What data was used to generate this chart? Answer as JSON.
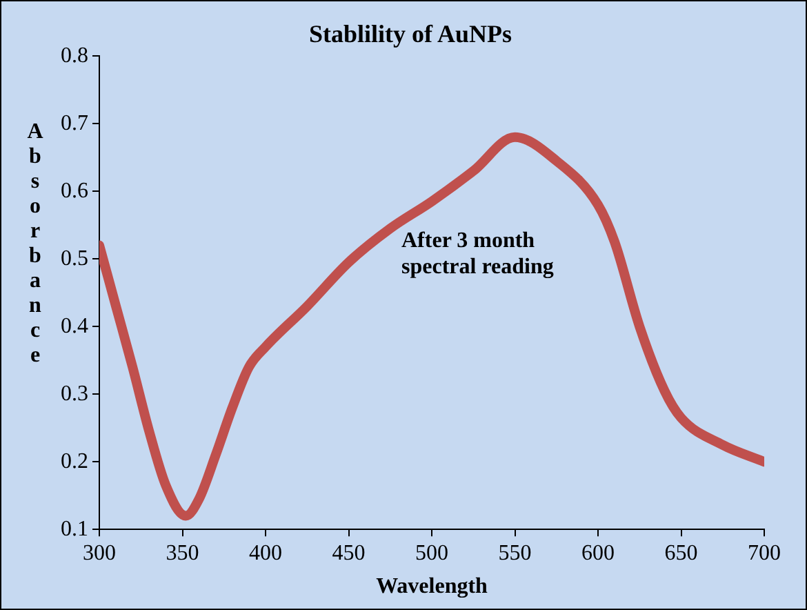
{
  "chart_data": {
    "type": "line",
    "title": "Stablility of AuNPs",
    "xlabel": "Wavelength",
    "ylabel": "Absorbance",
    "annotations": [
      "After 3 month spectral reading"
    ],
    "x": [
      300,
      310,
      320,
      330,
      340,
      352,
      360,
      370,
      380,
      390,
      400,
      425,
      450,
      475,
      500,
      525,
      550,
      575,
      600,
      610,
      625,
      640,
      650,
      675,
      700
    ],
    "series": [
      {
        "color": "#c0504d",
        "values": [
          0.52,
          0.43,
          0.34,
          0.245,
          0.165,
          0.12,
          0.145,
          0.21,
          0.28,
          0.34,
          0.37,
          0.43,
          0.495,
          0.545,
          0.585,
          0.63,
          0.68,
          0.645,
          0.58,
          0.525,
          0.4,
          0.305,
          0.265,
          0.225,
          0.2
        ]
      }
    ],
    "xlim": [
      300,
      700
    ],
    "xticks": [
      300,
      350,
      400,
      450,
      500,
      550,
      600,
      650,
      700
    ],
    "ylim": [
      0.1,
      0.8
    ],
    "yticks": [
      0.1,
      0.2,
      0.3,
      0.4,
      0.5,
      0.6,
      0.7,
      0.8
    ],
    "grid": false,
    "legend": false,
    "marker": "none",
    "line_style": "solid"
  }
}
